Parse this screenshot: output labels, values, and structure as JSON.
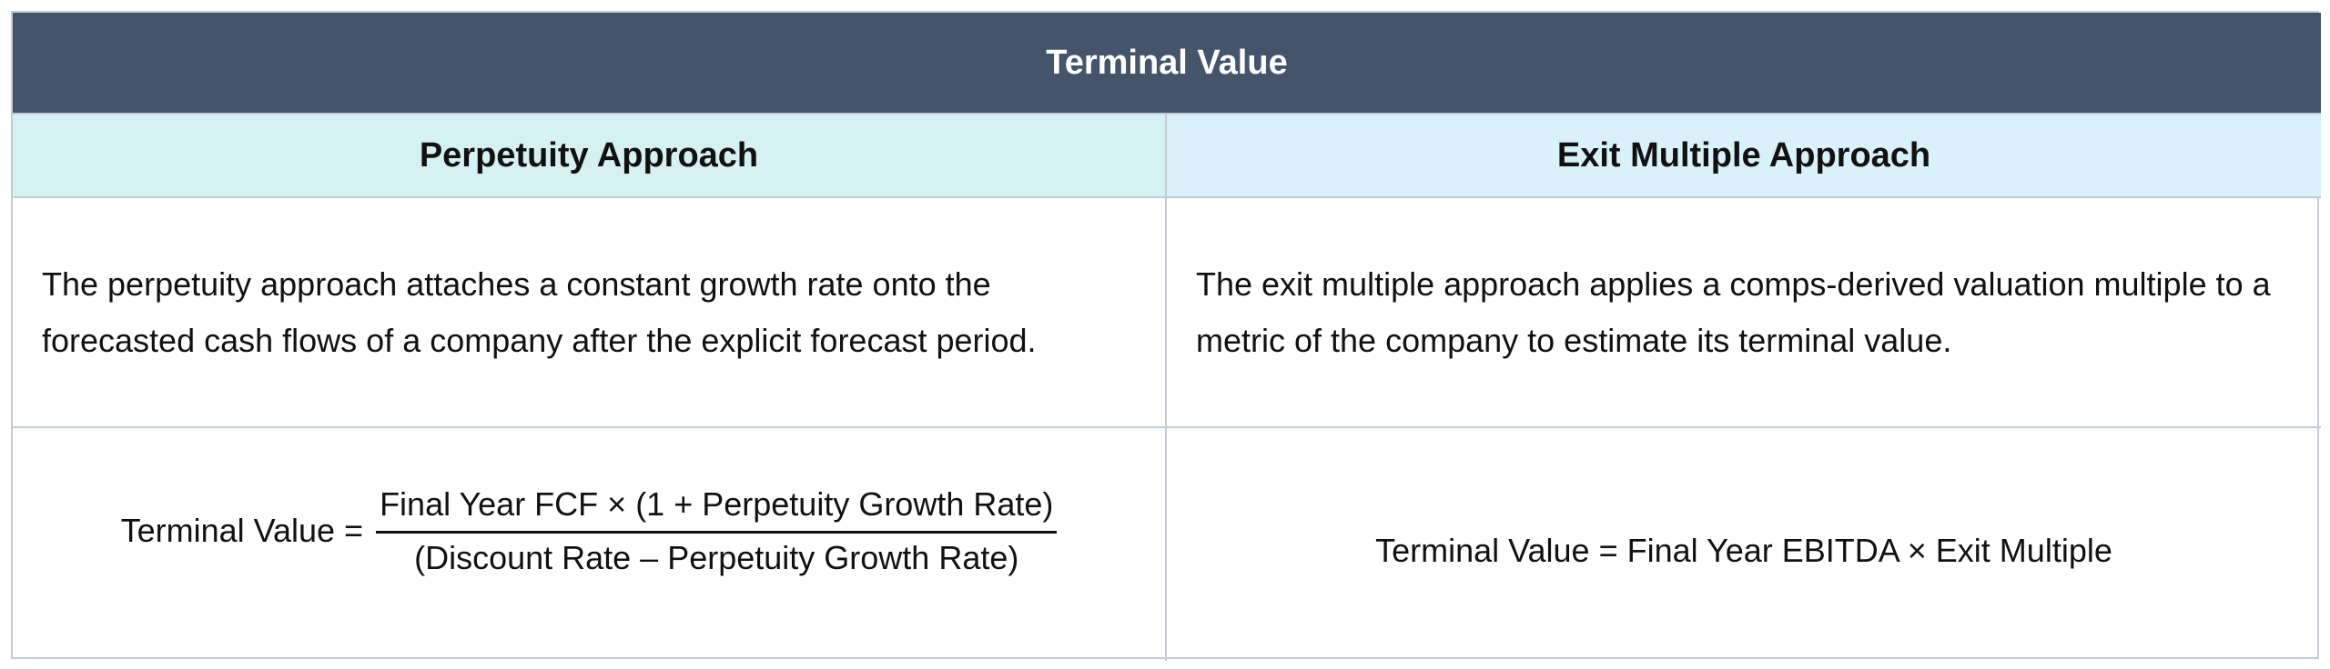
{
  "table": {
    "title": "Terminal Value",
    "columns": [
      {
        "heading": "Perpetuity Approach",
        "description": "The perpetuity approach attaches a constant growth rate onto the forecasted cash flows of a company after the explicit forecast period.",
        "formula": {
          "lhs": "Terminal Value =",
          "numerator": "Final Year FCF × (1 + Perpetuity Growth Rate)",
          "denominator": "(Discount Rate – Perpetuity Growth Rate)"
        }
      },
      {
        "heading": "Exit Multiple Approach",
        "description": "The exit multiple approach applies a comps-derived valuation multiple to a metric of the company to estimate its terminal value.",
        "formula": {
          "text": "Terminal Value = Final Year EBITDA × Exit Multiple"
        }
      }
    ]
  },
  "colors": {
    "title_bg": "#44546a",
    "perpetuity_header_bg": "#d5f1f1",
    "exit_multiple_header_bg": "#d9f1fb",
    "border": "#c4cbd6"
  }
}
